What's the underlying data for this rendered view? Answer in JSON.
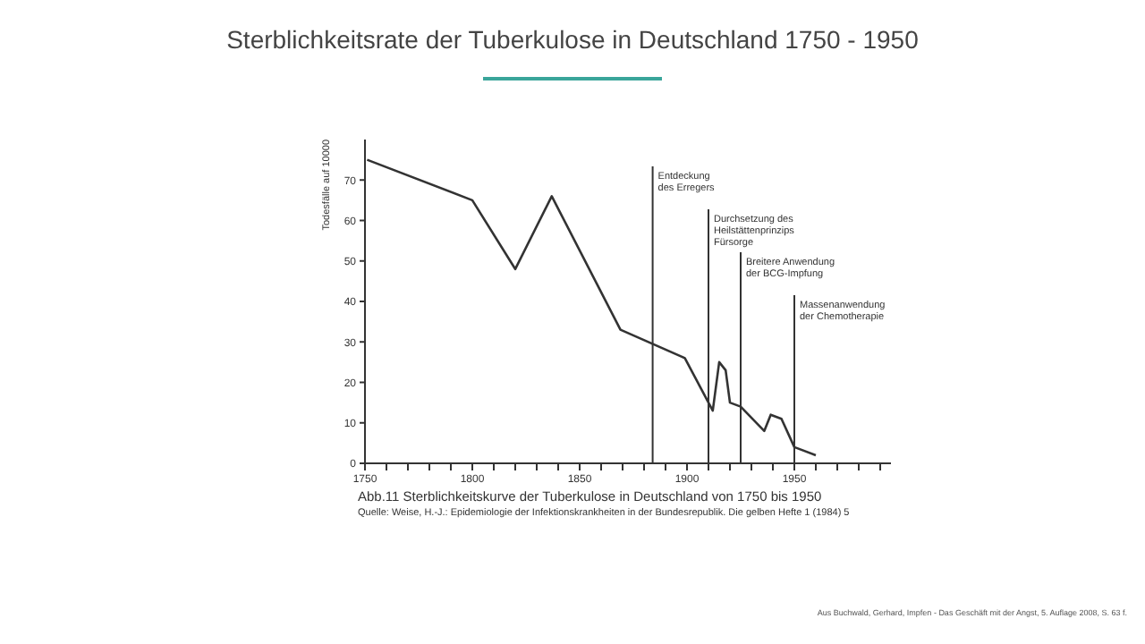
{
  "chart_data": {
    "type": "line",
    "title": "Sterblichkeitsrate der Tuberkulose in Deutschland 1750 - 1950",
    "ylabel": "Todesfälle auf 10000",
    "x": [
      1751,
      1800,
      1820,
      1837,
      1869,
      1899,
      1912,
      1915,
      1918,
      1920,
      1925,
      1936,
      1939,
      1944,
      1950,
      1960
    ],
    "series": [
      {
        "color": "#333333",
        "values": [
          75,
          65,
          48,
          66,
          33,
          26,
          13,
          25,
          23,
          15,
          14,
          8,
          12,
          11,
          4,
          2
        ]
      }
    ],
    "xlim": [
      1750,
      1995
    ],
    "xticks": [
      1750,
      {
        "value": 1760,
        "label": null
      },
      {
        "value": 1770,
        "label": null
      },
      {
        "value": 1780,
        "label": null
      },
      {
        "value": 1790,
        "label": null
      },
      1800,
      {
        "value": 1810,
        "label": null
      },
      {
        "value": 1820,
        "label": null
      },
      {
        "value": 1830,
        "label": null
      },
      {
        "value": 1840,
        "label": null
      },
      1850,
      {
        "value": 1860,
        "label": null
      },
      {
        "value": 1870,
        "label": null
      },
      {
        "value": 1880,
        "label": null
      },
      {
        "value": 1890,
        "label": null
      },
      1900,
      {
        "value": 1910,
        "label": null
      },
      {
        "value": 1920,
        "label": null
      },
      {
        "value": 1930,
        "label": null
      },
      {
        "value": 1940,
        "label": null
      },
      1950,
      {
        "value": 1960,
        "label": null
      },
      {
        "value": 1970,
        "label": null
      },
      {
        "value": 1980,
        "label": null
      },
      {
        "value": 1990,
        "label": null
      }
    ],
    "ylim": [
      0,
      80
    ],
    "yticks": [
      0,
      10,
      20,
      30,
      40,
      50,
      60,
      70
    ],
    "grid": false,
    "legend": false,
    "marker": "none",
    "line_style": "solid",
    "ref_lines": [
      {
        "axis": "x",
        "value": 1884,
        "label": "Entdeckung\ndes Erregers",
        "color": "#333333"
      },
      {
        "axis": "x",
        "value": 1910,
        "label": "Durchsetzung des\nHeilstättenprinzips\nFürsorge",
        "color": "#333333"
      },
      {
        "axis": "x",
        "value": 1925,
        "label": "Breitere Anwendung\nder BCG-Impfung",
        "color": "#333333"
      },
      {
        "axis": "x",
        "value": 1950,
        "label": "Massenanwendung\nder Chemotherapie",
        "color": "#333333"
      }
    ],
    "annotations": [
      "Abb.11  Sterblichkeitskurve der Tuberkulose in Deutschland von 1750 bis 1950",
      "Quelle: Weise, H.-J.: Epidemiologie der Infektionskrankheiten in der Bundesrepublik. Die gelben Hefte 1 (1984) 5",
      "Aus Buchwald, Gerhard, Impfen - Das Geschäft mit der Angst, 5. Auflage 2008, S. 63 f."
    ]
  }
}
